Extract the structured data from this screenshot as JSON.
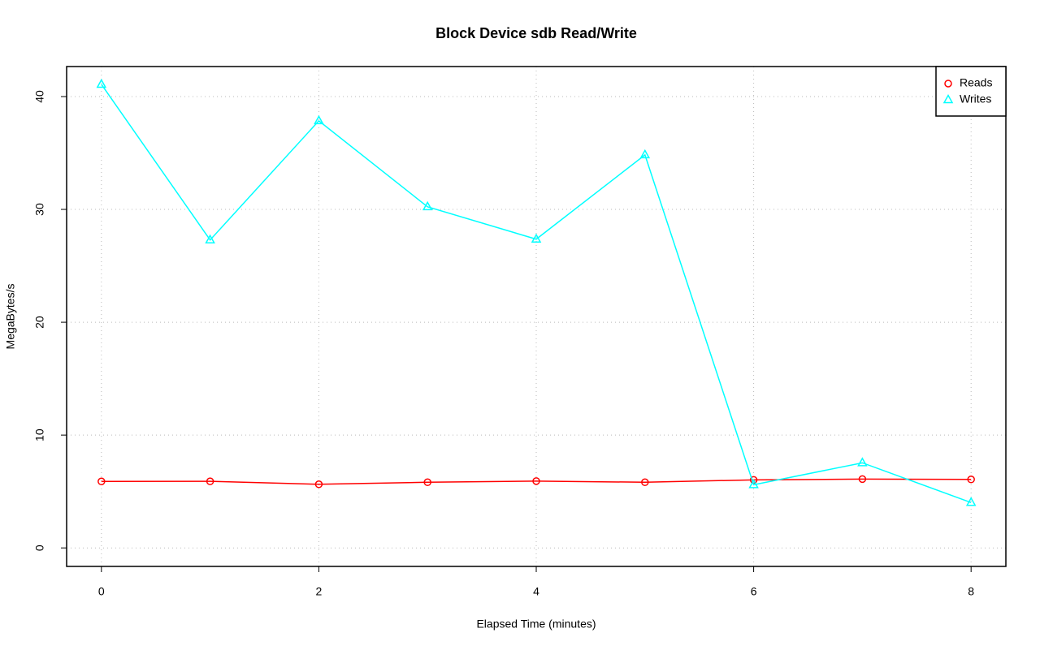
{
  "chart_data": {
    "type": "line",
    "title": "Block Device sdb Read/Write",
    "x_label": "Elapsed Time (minutes)",
    "y_label": "MegaBytes/s",
    "x": [
      0,
      1,
      2,
      3,
      4,
      5,
      6,
      7,
      8
    ],
    "series": [
      {
        "name": "Reads",
        "color": "#ff0000",
        "marker": "circle",
        "values": [
          5.89,
          5.9,
          5.64,
          5.82,
          5.92,
          5.82,
          6.03,
          6.1,
          6.07
        ]
      },
      {
        "name": "Writes",
        "color": "#00ffff",
        "marker": "triangle",
        "values": [
          41.08,
          27.29,
          37.85,
          30.23,
          27.36,
          34.83,
          5.6,
          7.54,
          4.02
        ]
      }
    ],
    "xlim": [
      -0.32,
      8.32
    ],
    "xticks": [
      0,
      2,
      4,
      6,
      8
    ],
    "ylim": [
      -1.64,
      42.66
    ],
    "yticks": [
      0,
      10,
      20,
      30,
      40
    ],
    "grid": true,
    "legend": "top-right"
  }
}
